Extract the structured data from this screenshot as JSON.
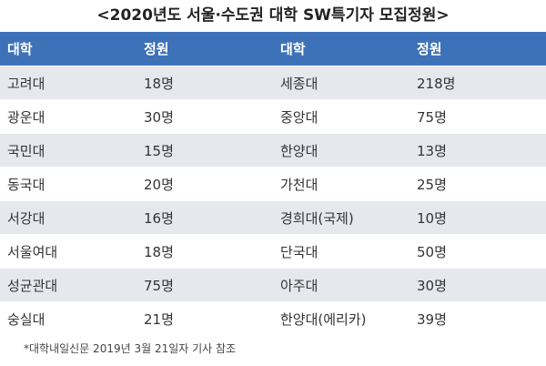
{
  "title": "<2020년도 서울·수도권 대학 SW특기자 모집정원>",
  "table": {
    "header": [
      "대학",
      "정원",
      "대학",
      "정원"
    ],
    "rows": [
      [
        "고려대",
        "18명",
        "세종대",
        "218명"
      ],
      [
        "광운대",
        "30명",
        "중앙대",
        "75명"
      ],
      [
        "국민대",
        "15명",
        "한양대",
        "13명"
      ],
      [
        "동국대",
        "20명",
        "가천대",
        "25명"
      ],
      [
        "서강대",
        "16명",
        "경희대(국제)",
        "10명"
      ],
      [
        "서울여대",
        "18명",
        "단국대",
        "50명"
      ],
      [
        "성균관대",
        "75명",
        "아주대",
        "30명"
      ],
      [
        "숭실대",
        "21명",
        "한양대(에리카)",
        "39명"
      ]
    ]
  },
  "footnote": "*대학내일신문 2019년 3월 21일자 기사 참조"
}
